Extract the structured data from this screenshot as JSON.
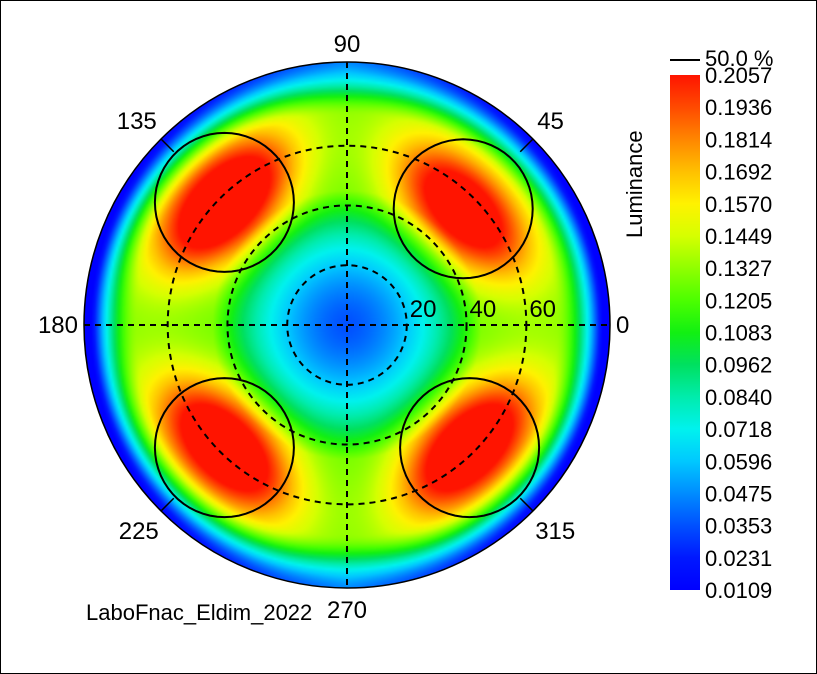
{
  "chart_data": {
    "type": "heatmap",
    "projection": "polar",
    "colorbar": {
      "title": "Luminance",
      "marker_label": "50.0 %",
      "ticks": [
        "0.2057",
        "0.1936",
        "0.1814",
        "0.1692",
        "0.1570",
        "0.1449",
        "0.1327",
        "0.1205",
        "0.1083",
        "0.0962",
        "0.0840",
        "0.0718",
        "0.0596",
        "0.0475",
        "0.0353",
        "0.0231",
        "0.0109"
      ],
      "colors": [
        "#ff1400",
        "#ff4a00",
        "#ff8600",
        "#ffc000",
        "#fff200",
        "#d6ff00",
        "#90ff00",
        "#4cff00",
        "#12f012",
        "#00e060",
        "#00ecac",
        "#00f2ee",
        "#00c8ff",
        "#008cff",
        "#0050ff",
        "#0018ff",
        "#0000ff"
      ],
      "min": 0.0109,
      "max": 0.2057
    },
    "angular_ticks": [
      {
        "angle": 0,
        "label": "0"
      },
      {
        "angle": 45,
        "label": "45"
      },
      {
        "angle": 90,
        "label": "90"
      },
      {
        "angle": 135,
        "label": "135"
      },
      {
        "angle": 180,
        "label": "180"
      },
      {
        "angle": 225,
        "label": "225"
      },
      {
        "angle": 270,
        "label": "270"
      },
      {
        "angle": 315,
        "label": "315"
      }
    ],
    "radial_ticks": [
      {
        "value": 20,
        "label": "20"
      },
      {
        "value": 40,
        "label": "40"
      },
      {
        "value": 60,
        "label": "60"
      }
    ],
    "radial_max": 88,
    "lobes": [
      {
        "azimuth": 45,
        "inclination": 55,
        "peak": 0.19
      },
      {
        "azimuth": 135,
        "inclination": 58,
        "peak": 0.2057
      },
      {
        "azimuth": 225,
        "inclination": 58,
        "peak": 0.2
      },
      {
        "azimuth": 315,
        "inclination": 58,
        "peak": 0.2
      }
    ],
    "center_value": 0.0353,
    "contour_level_percent": 50.0,
    "footer_label": "LaboFnac_Eldim_2022"
  }
}
